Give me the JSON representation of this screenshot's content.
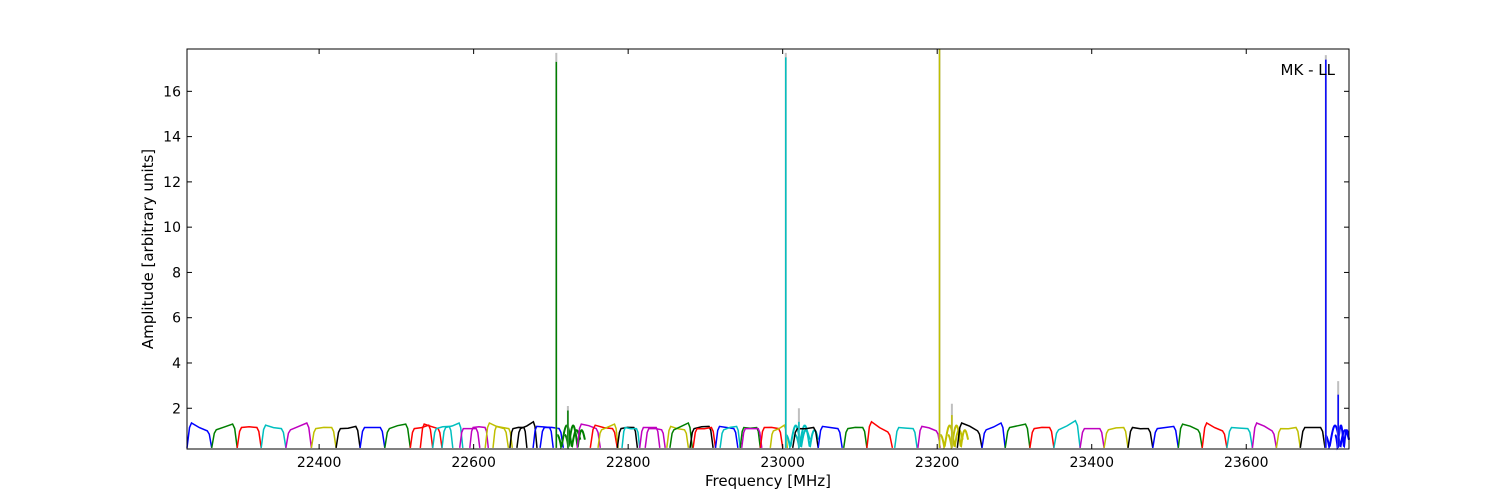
{
  "chart_data": {
    "type": "line",
    "title": "",
    "annotation": "MK - LL",
    "xlabel": "Frequency [MHz]",
    "ylabel": "Amplitude [arbitrary units]",
    "xlim": [
      22229,
      23733
    ],
    "ylim": [
      0.2,
      17.87
    ],
    "xticks": [
      22400,
      22600,
      22800,
      23000,
      23200,
      23400,
      23600
    ],
    "yticks": [
      2,
      4,
      6,
      8,
      10,
      12,
      14,
      16
    ],
    "grid": false,
    "legend": "none",
    "colors": {
      "b": "#0000ff",
      "g": "#007f00",
      "r": "#ff0000",
      "c": "#00bfbf",
      "m": "#bf00bf",
      "y": "#bfbf00",
      "k": "#000000",
      "grey": "#bfbfbf"
    },
    "floor": 0.25,
    "channels": [
      {
        "f": [
          22229,
          22261
        ],
        "c": "b",
        "lv": [
          1.35,
          1.0
        ]
      },
      {
        "f": [
          22261,
          22294
        ],
        "c": "g",
        "lv": [
          1.05,
          1.3
        ]
      },
      {
        "f": [
          22294,
          22325
        ],
        "c": "r",
        "lv": [
          1.15,
          1.15
        ]
      },
      {
        "f": [
          22325,
          22357
        ],
        "c": "c",
        "lv": [
          1.25,
          1.1
        ]
      },
      {
        "f": [
          22357,
          22390
        ],
        "c": "m",
        "lv": [
          1.05,
          1.35
        ]
      },
      {
        "f": [
          22390,
          22422
        ],
        "c": "y",
        "lv": [
          1.1,
          1.15
        ]
      },
      {
        "f": [
          22422,
          22453
        ],
        "c": "k",
        "lv": [
          1.1,
          1.2
        ]
      },
      {
        "f": [
          22453,
          22485
        ],
        "c": "b",
        "lv": [
          1.15,
          1.15
        ]
      },
      {
        "f": [
          22485,
          22518
        ],
        "c": "g",
        "lv": [
          1.1,
          1.3
        ]
      },
      {
        "f": [
          22518,
          22547
        ],
        "c": "r",
        "lv": [
          1.1,
          1.25
        ]
      },
      {
        "f": [
          22531,
          22559
        ],
        "c": "r",
        "lv": [
          1.3,
          1.1
        ]
      },
      {
        "f": [
          22547,
          22573
        ],
        "c": "c",
        "lv": [
          1.1,
          1.2
        ]
      },
      {
        "f": [
          22559,
          22586
        ],
        "c": "c",
        "lv": [
          1.15,
          1.35
        ]
      },
      {
        "f": [
          22582,
          22608
        ],
        "c": "m",
        "lv": [
          1.1,
          1.1
        ]
      },
      {
        "f": [
          22595,
          22619
        ],
        "c": "m",
        "lv": [
          1.15,
          1.15
        ]
      },
      {
        "f": [
          22615,
          22645
        ],
        "c": "y",
        "lv": [
          1.35,
          1.1
        ]
      },
      {
        "f": [
          22625,
          22650
        ],
        "c": "y",
        "lv": [
          1.2,
          1.1
        ]
      },
      {
        "f": [
          22647,
          22669
        ],
        "c": "k",
        "lv": [
          1.1,
          1.15
        ]
      },
      {
        "f": [
          22656,
          22682
        ],
        "c": "k",
        "lv": [
          1.1,
          1.4
        ]
      },
      {
        "f": [
          22677,
          22703
        ],
        "c": "b",
        "lv": [
          1.2,
          1.15
        ]
      },
      {
        "f": [
          22686,
          22716
        ],
        "c": "b",
        "lv": [
          1.15,
          1.1
        ]
      },
      {
        "f": [
          22708,
          22738
        ],
        "c": "g",
        "spike": true
      },
      {
        "f": [
          22718,
          22744
        ],
        "c": "g",
        "spike": true
      },
      {
        "f": [
          22734,
          22764
        ],
        "c": "m",
        "lv": [
          1.3,
          1.1
        ]
      },
      {
        "f": [
          22751,
          22786
        ],
        "c": "r",
        "lv": [
          1.25,
          1.1
        ]
      },
      {
        "f": [
          22761,
          22787
        ],
        "c": "y",
        "lv": [
          1.05,
          1.3
        ]
      },
      {
        "f": [
          22786,
          22812
        ],
        "c": "k",
        "lv": [
          1.1,
          1.15
        ]
      },
      {
        "f": [
          22792,
          22815
        ],
        "c": "c",
        "lv": [
          1.15,
          1.1
        ]
      },
      {
        "f": [
          22815,
          22841
        ],
        "c": "m",
        "lv": [
          1.15,
          1.15
        ]
      },
      {
        "f": [
          22822,
          22848
        ],
        "c": "m",
        "lv": [
          1.1,
          1.05
        ]
      },
      {
        "f": [
          22850,
          22878
        ],
        "c": "y",
        "lv": [
          1.2,
          1.05
        ]
      },
      {
        "f": [
          22854,
          22883
        ],
        "c": "g",
        "lv": [
          1.05,
          1.35
        ]
      },
      {
        "f": [
          22880,
          22910
        ],
        "c": "k",
        "lv": [
          1.1,
          1.2
        ]
      },
      {
        "f": [
          22884,
          22913
        ],
        "c": "r",
        "lv": [
          1.1,
          1.15
        ]
      },
      {
        "f": [
          22913,
          22942
        ],
        "c": "b",
        "lv": [
          1.2,
          1.1
        ]
      },
      {
        "f": [
          22919,
          22945
        ],
        "c": "c",
        "lv": [
          1.05,
          1.2
        ]
      },
      {
        "f": [
          22945,
          22971
        ],
        "c": "g",
        "lv": [
          1.15,
          1.15
        ]
      },
      {
        "f": [
          22947,
          22973
        ],
        "c": "m",
        "lv": [
          1.1,
          1.1
        ]
      },
      {
        "f": [
          22971,
          23000
        ],
        "c": "r",
        "lv": [
          1.15,
          1.1
        ]
      },
      {
        "f": [
          22984,
          23006
        ],
        "c": "y",
        "lv": [
          1.0,
          1.25
        ]
      },
      {
        "f": [
          23004,
          23035
        ],
        "c": "c",
        "spike": true
      },
      {
        "f": [
          23016,
          23046
        ],
        "c": "c",
        "spike": true
      },
      {
        "f": [
          23013,
          23046
        ],
        "c": "k",
        "lv": [
          1.1,
          1.15
        ]
      },
      {
        "f": [
          23046,
          23077
        ],
        "c": "b",
        "lv": [
          1.2,
          1.1
        ]
      },
      {
        "f": [
          23079,
          23109
        ],
        "c": "g",
        "lv": [
          1.1,
          1.15
        ]
      },
      {
        "f": [
          23109,
          23142
        ],
        "c": "r",
        "lv": [
          1.4,
          0.95
        ]
      },
      {
        "f": [
          23145,
          23174
        ],
        "c": "c",
        "lv": [
          1.15,
          1.1
        ]
      },
      {
        "f": [
          23175,
          23204
        ],
        "c": "m",
        "lv": [
          1.2,
          1.0
        ]
      },
      {
        "f": [
          23204,
          23233
        ],
        "c": "y",
        "spike": true
      },
      {
        "f": [
          23214,
          23240
        ],
        "c": "y",
        "spike": true
      },
      {
        "f": [
          23226,
          23258
        ],
        "c": "k",
        "lv": [
          1.35,
          1.0
        ]
      },
      {
        "f": [
          23258,
          23288
        ],
        "c": "b",
        "lv": [
          1.05,
          1.35
        ]
      },
      {
        "f": [
          23288,
          23320
        ],
        "c": "g",
        "lv": [
          1.15,
          1.3
        ]
      },
      {
        "f": [
          23320,
          23351
        ],
        "c": "r",
        "lv": [
          1.1,
          1.15
        ]
      },
      {
        "f": [
          23351,
          23385
        ],
        "c": "c",
        "lv": [
          1.05,
          1.45
        ]
      },
      {
        "f": [
          23385,
          23416
        ],
        "c": "m",
        "lv": [
          1.1,
          1.1
        ]
      },
      {
        "f": [
          23416,
          23447
        ],
        "c": "y",
        "lv": [
          1.05,
          1.15
        ]
      },
      {
        "f": [
          23447,
          23479
        ],
        "c": "k",
        "lv": [
          1.15,
          1.1
        ]
      },
      {
        "f": [
          23479,
          23512
        ],
        "c": "b",
        "lv": [
          1.1,
          1.2
        ]
      },
      {
        "f": [
          23512,
          23543
        ],
        "c": "g",
        "lv": [
          1.3,
          1.05
        ]
      },
      {
        "f": [
          23543,
          23575
        ],
        "c": "r",
        "lv": [
          1.35,
          1.0
        ]
      },
      {
        "f": [
          23575,
          23608
        ],
        "c": "c",
        "lv": [
          1.15,
          1.1
        ]
      },
      {
        "f": [
          23608,
          23639
        ],
        "c": "m",
        "lv": [
          1.35,
          1.0
        ]
      },
      {
        "f": [
          23639,
          23670
        ],
        "c": "y",
        "lv": [
          1.1,
          1.15
        ]
      },
      {
        "f": [
          23670,
          23702
        ],
        "c": "k",
        "lv": [
          1.15,
          1.15
        ]
      },
      {
        "f": [
          23702,
          23733
        ],
        "c": "b",
        "spike": true
      },
      {
        "f": [
          23715,
          23733
        ],
        "c": "b",
        "spike": true
      }
    ],
    "spikes": [
      {
        "x": 22707,
        "y": 17.3,
        "max": 17.7,
        "c": "g"
      },
      {
        "x": 22722,
        "y": 1.9,
        "max": 2.1,
        "c": "g"
      },
      {
        "x": 23004,
        "y": 17.5,
        "max": 17.7,
        "c": "c"
      },
      {
        "x": 23021,
        "y": 1.4,
        "max": 2.0,
        "c": "c"
      },
      {
        "x": 23203,
        "y": 17.85,
        "max": 17.87,
        "c": "y"
      },
      {
        "x": 23219,
        "y": 1.7,
        "max": 2.2,
        "c": "y"
      },
      {
        "x": 23703,
        "y": 17.4,
        "max": 17.6,
        "c": "b"
      },
      {
        "x": 23719,
        "y": 2.6,
        "max": 3.2,
        "c": "b"
      }
    ]
  }
}
